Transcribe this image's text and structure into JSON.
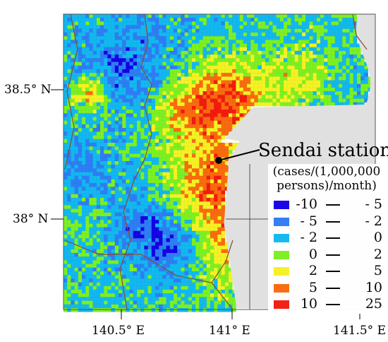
{
  "map": {
    "annotation": "Sendai station",
    "legend": {
      "title_lines": [
        "(cases/(1,000,000",
        "persons)/month)"
      ],
      "items": [
        {
          "low": "-10",
          "high": "- 5",
          "color": "#1500e6"
        },
        {
          "low": "- 5",
          "high": "- 2",
          "color": "#2f7df5"
        },
        {
          "low": "- 2",
          "high": "0",
          "color": "#12b8f0"
        },
        {
          "low": "0",
          "high": "2",
          "color": "#7df022"
        },
        {
          "low": "2",
          "high": "5",
          "color": "#f5f224"
        },
        {
          "low": "5",
          "high": "10",
          "color": "#fa6b0e"
        },
        {
          "low": "10",
          "high": "25",
          "color": "#f41a10"
        }
      ]
    },
    "y_ticks": [
      "38.5° N",
      "38° N"
    ],
    "x_ticks": [
      "140.5° E",
      "141° E",
      "141.5° E"
    ],
    "sea_color": "#e0e0e0",
    "border_color": "#8b4a2b"
  }
}
